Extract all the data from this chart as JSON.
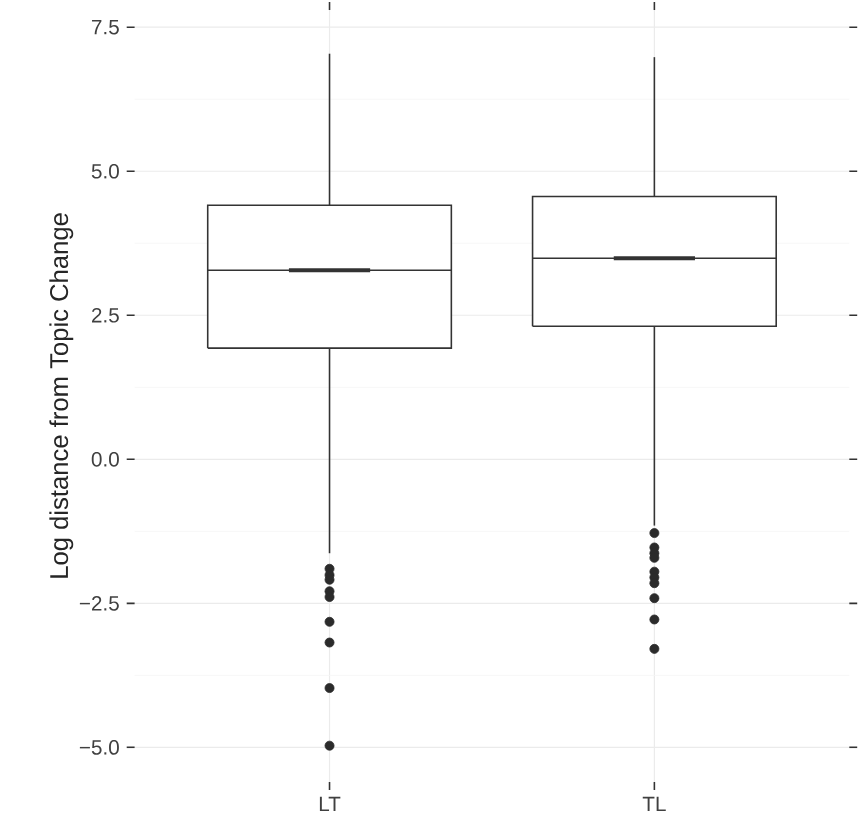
{
  "chart_data": {
    "type": "box",
    "ylabel": "Log distance from Topic Change",
    "categories": [
      "LT",
      "TL"
    ],
    "series": [
      {
        "color": "#333333",
        "boxes": [
          {
            "low": -1.63,
            "q1": 1.93,
            "median": 3.28,
            "q3": 4.41,
            "high": 7.04,
            "outliers": [
              -1.9,
              -2.01,
              -2.09,
              -2.29,
              -2.39,
              -2.82,
              -3.18,
              -3.97,
              -4.97
            ]
          },
          {
            "low": -1.15,
            "q1": 2.31,
            "median": 3.49,
            "q3": 4.56,
            "high": 6.98,
            "outliers": [
              -1.28,
              -1.53,
              -1.63,
              -1.71,
              -1.95,
              -2.05,
              -2.15,
              -2.41,
              -2.78,
              -3.29
            ]
          }
        ]
      }
    ],
    "ylim": [
      -5.6,
      7.8
    ],
    "yticks": [
      {
        "value": -5,
        "label": "−5.0"
      },
      {
        "value": -2.5,
        "label": "−2.5"
      },
      {
        "value": 0,
        "label": "0.0"
      },
      {
        "value": 2.5,
        "label": "2.5"
      },
      {
        "value": 5,
        "label": "5.0"
      },
      {
        "value": 7.5,
        "label": "7.5"
      }
    ],
    "grid": true
  }
}
